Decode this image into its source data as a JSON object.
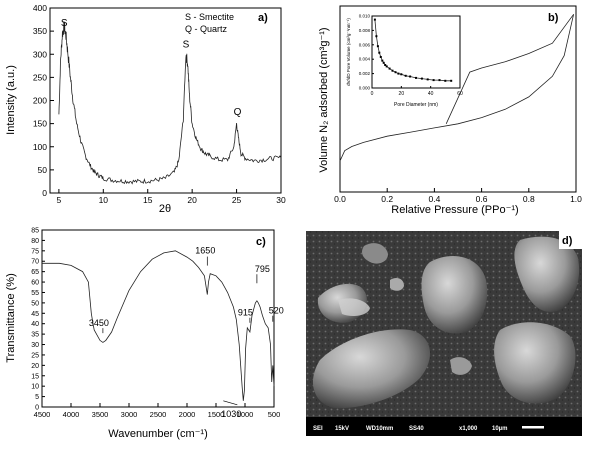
{
  "chart_data": [
    {
      "id": "a",
      "type": "line",
      "panel_label": "a)",
      "xlabel": "2θ",
      "ylabel": "Intensity (a.u.)",
      "xlim": [
        4,
        30
      ],
      "ylim": [
        0,
        400
      ],
      "xticks": [
        5,
        10,
        15,
        20,
        25,
        30
      ],
      "yticks": [
        0,
        50,
        100,
        150,
        200,
        250,
        300,
        350,
        400
      ],
      "legend": [
        "S - Smectite",
        "Q - Quartz"
      ],
      "annotations": [
        {
          "text": "S",
          "x": 5.6,
          "y": 355
        },
        {
          "text": "S",
          "x": 19.3,
          "y": 308
        },
        {
          "text": "Q",
          "x": 25.1,
          "y": 162
        }
      ],
      "x": [
        5.0,
        5.2,
        5.4,
        5.6,
        5.8,
        6.0,
        6.3,
        6.6,
        7.0,
        7.5,
        8.0,
        8.5,
        9.0,
        9.5,
        10.0,
        11.0,
        12.0,
        13.0,
        14.0,
        15.0,
        16.0,
        17.0,
        18.0,
        18.5,
        19.0,
        19.3,
        19.5,
        19.7,
        20.0,
        20.5,
        21.0,
        21.5,
        22.0,
        23.0,
        24.0,
        24.7,
        25.0,
        25.2,
        25.5,
        26.0,
        27.0,
        28.0,
        29.0,
        30.0
      ],
      "values": [
        170,
        290,
        345,
        360,
        340,
        305,
        250,
        200,
        150,
        110,
        80,
        60,
        45,
        38,
        32,
        28,
        26,
        25,
        25,
        26,
        28,
        32,
        45,
        70,
        160,
        300,
        280,
        210,
        150,
        115,
        95,
        85,
        80,
        72,
        72,
        100,
        150,
        120,
        85,
        75,
        70,
        72,
        75,
        76
      ]
    },
    {
      "id": "b",
      "type": "line",
      "panel_label": "b)",
      "xlabel": "Relative Pressure (PPo⁻¹)",
      "ylabel": "Volume N₂ adsorbed (cm³g⁻¹)",
      "xlim": [
        0.0,
        1.0
      ],
      "ylim": [
        0,
        90
      ],
      "xticks": [
        0.0,
        0.2,
        0.4,
        0.6,
        0.8,
        1.0
      ],
      "series": [
        {
          "x": [
            0.0,
            0.02,
            0.05,
            0.1,
            0.2,
            0.3,
            0.4,
            0.5,
            0.6,
            0.7,
            0.8,
            0.9,
            0.95,
            0.99
          ],
          "values": [
            15,
            20,
            22,
            24,
            27,
            29,
            31,
            33,
            36,
            40,
            46,
            56,
            66,
            86
          ]
        },
        {
          "x": [
            0.99,
            0.9,
            0.8,
            0.7,
            0.6,
            0.55,
            0.45
          ],
          "values": [
            86,
            72,
            67,
            63,
            60,
            58,
            33
          ]
        }
      ],
      "inset": {
        "type": "scatter",
        "xlabel": "Pore Diameter (nm)",
        "ylabel": "dV/dD Pore Volume (cm³g⁻¹nm⁻¹)",
        "xlim": [
          0,
          60
        ],
        "ylim": [
          0,
          0.01
        ],
        "xticks": [
          0,
          20,
          40,
          60
        ],
        "yticks": [
          0.0,
          0.002,
          0.004,
          0.006,
          0.008,
          0.01
        ],
        "ytick_labels": [
          "0.000",
          "0.002",
          "0.004",
          "0.006",
          "0.008",
          "0.010"
        ],
        "x": [
          2,
          3,
          4,
          5,
          6,
          7,
          8,
          9,
          10,
          12,
          14,
          16,
          18,
          20,
          23,
          26,
          30,
          34,
          38,
          42,
          46,
          50,
          54
        ],
        "values": [
          0.0095,
          0.0072,
          0.0058,
          0.0049,
          0.0043,
          0.0038,
          0.0035,
          0.0032,
          0.003,
          0.0027,
          0.0024,
          0.0022,
          0.002,
          0.0019,
          0.0017,
          0.0016,
          0.0014,
          0.0013,
          0.0012,
          0.0011,
          0.0011,
          0.001,
          0.001
        ]
      }
    },
    {
      "id": "c",
      "type": "line",
      "panel_label": "c)",
      "xlabel": "Wavenumber (cm⁻¹)",
      "ylabel": "Transmittance (%)",
      "xlim": [
        4500,
        500
      ],
      "ylim": [
        0,
        85
      ],
      "xticks": [
        4500,
        4000,
        3500,
        3000,
        2500,
        2000,
        1500,
        1000,
        500
      ],
      "yticks": [
        0,
        5,
        10,
        15,
        20,
        25,
        30,
        35,
        40,
        45,
        50,
        55,
        60,
        65,
        70,
        75,
        80,
        85
      ],
      "annotations": [
        {
          "text": "3450",
          "x": 3450,
          "y": 35
        },
        {
          "text": "1650",
          "x": 1650,
          "y": 66
        },
        {
          "text": "915",
          "x": 915,
          "y": 40
        },
        {
          "text": "795",
          "x": 795,
          "y": 58
        },
        {
          "text": "520",
          "x": 520,
          "y": 40
        },
        {
          "text": "1030",
          "x": 1030,
          "y": 2
        }
      ],
      "x": [
        4500,
        4200,
        4000,
        3800,
        3700,
        3650,
        3620,
        3600,
        3500,
        3450,
        3400,
        3300,
        3200,
        3000,
        2800,
        2600,
        2400,
        2200,
        2000,
        1900,
        1800,
        1700,
        1650,
        1630,
        1600,
        1500,
        1400,
        1300,
        1200,
        1150,
        1100,
        1050,
        1030,
        1010,
        990,
        960,
        915,
        880,
        850,
        820,
        795,
        770,
        740,
        700,
        650,
        600,
        560,
        540,
        520,
        500
      ],
      "values": [
        69,
        69,
        68,
        65,
        60,
        45,
        40,
        37,
        32,
        31,
        32,
        36,
        43,
        56,
        65,
        71,
        74,
        75,
        72,
        70,
        67,
        63,
        54,
        60,
        64,
        63,
        60,
        55,
        48,
        42,
        30,
        10,
        3,
        8,
        28,
        38,
        36,
        44,
        47,
        50,
        51,
        50,
        48,
        44,
        40,
        38,
        30,
        12,
        20,
        10
      ]
    }
  ],
  "sem": {
    "panel_label": "d)",
    "info_bar": [
      "SEI",
      "15kV",
      "WD10mm",
      "SS40",
      "x1,000",
      "10µm"
    ]
  },
  "colors": {
    "line": "#222222",
    "sem_bg": "#3a3a3a",
    "info_bar": "#000000"
  }
}
